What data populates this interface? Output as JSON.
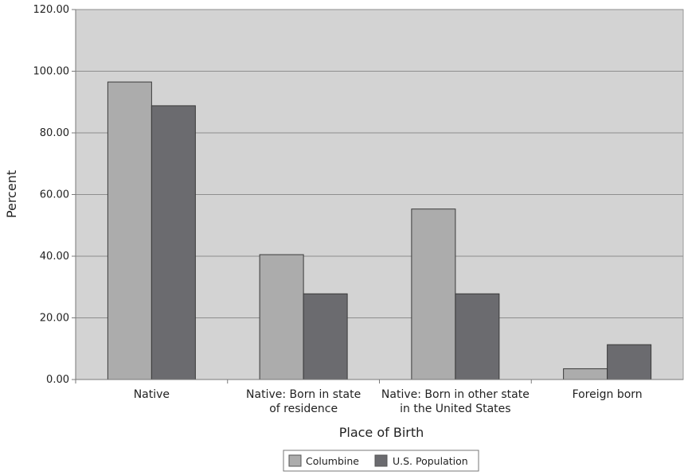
{
  "chart_data": {
    "type": "bar",
    "title": "",
    "xlabel": "Place of Birth",
    "ylabel": "Percent",
    "ylim": [
      0,
      120
    ],
    "yticks": [
      "0.00",
      "20.00",
      "40.00",
      "60.00",
      "80.00",
      "100.00",
      "120.00"
    ],
    "grid": true,
    "legend_position": "bottom-center",
    "categories": [
      [
        "Native"
      ],
      [
        "Native: Born in state",
        "of residence"
      ],
      [
        "Native: Born in other state",
        "in the United States"
      ],
      [
        "Foreign born"
      ]
    ],
    "series": [
      {
        "name": "Columbine",
        "color": "#acacac",
        "values": [
          96.5,
          40.5,
          55.3,
          3.5
        ]
      },
      {
        "name": "U.S. Population",
        "color": "#6b6b6f",
        "values": [
          88.8,
          27.8,
          27.8,
          11.3
        ]
      }
    ],
    "plot_background": "#d3d3d3"
  }
}
